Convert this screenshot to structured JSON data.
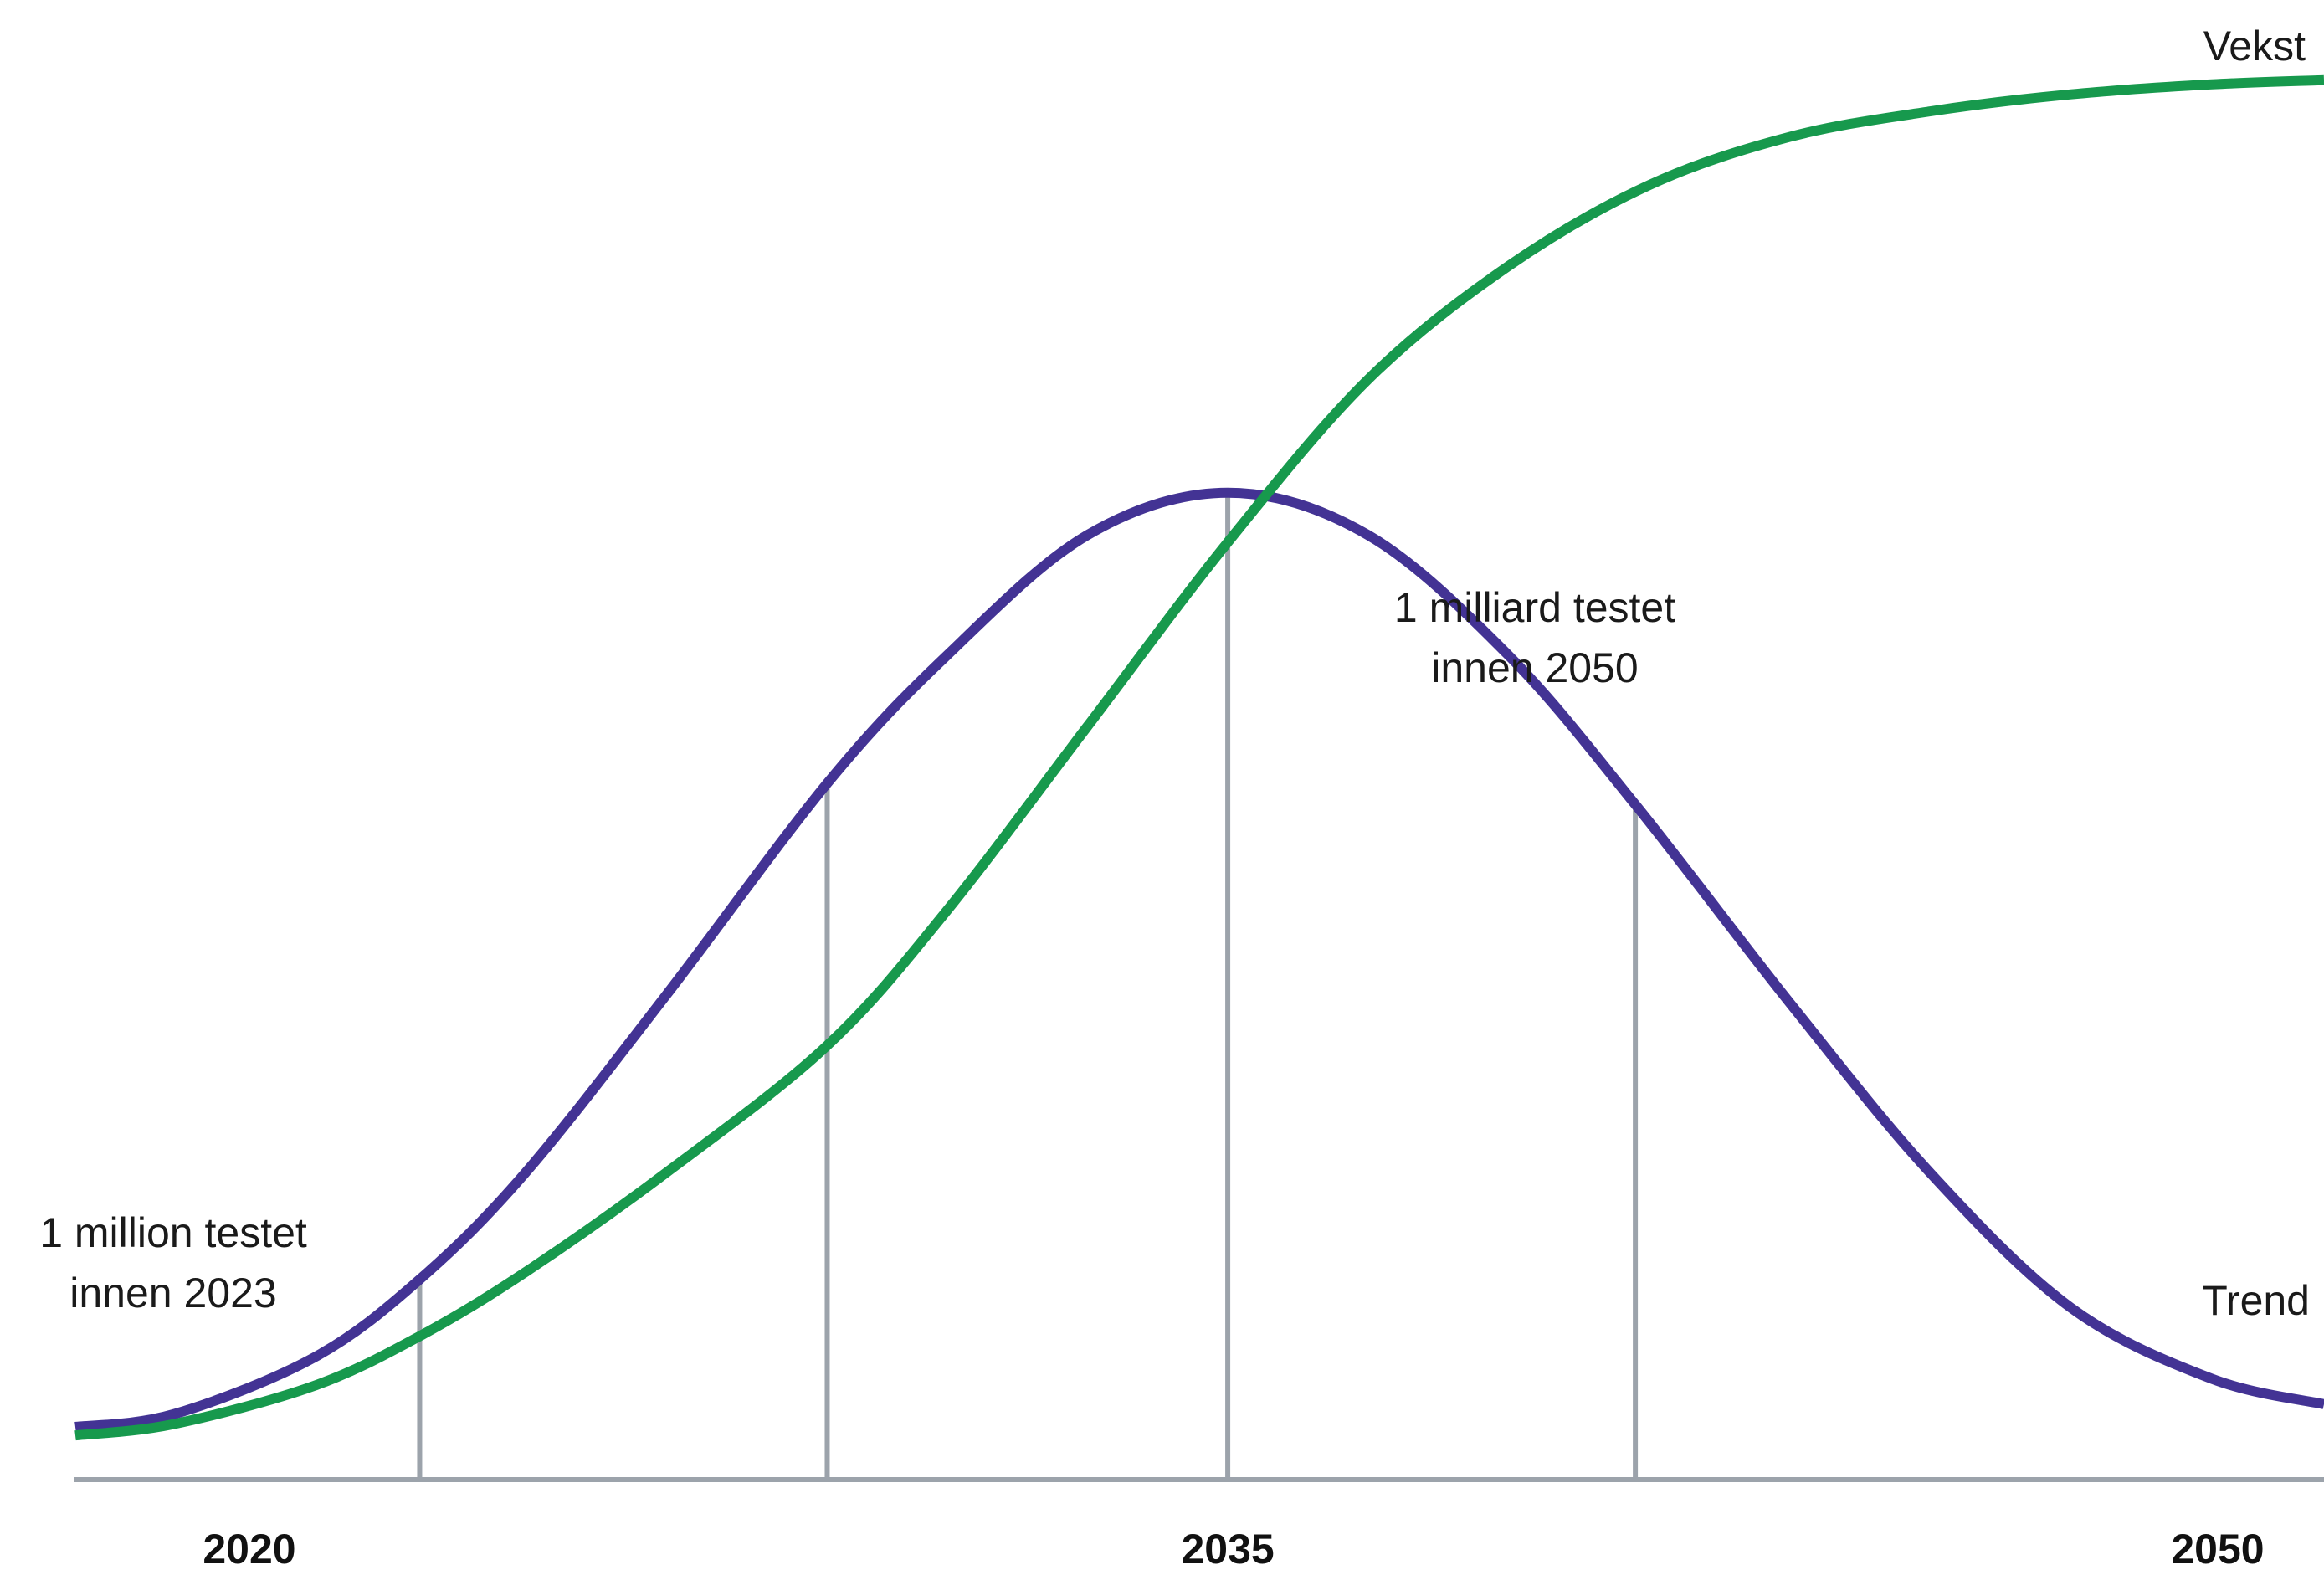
{
  "colors": {
    "trend": "#433394",
    "vekst": "#17994d",
    "grid": "#9ca3ab",
    "text": "#1a1a1a"
  },
  "chart_data": {
    "type": "line",
    "xlabel": "",
    "ylabel": "",
    "xlim": [
      2018.6,
      2050.6
    ],
    "ylim": [
      0,
      100
    ],
    "x_ticks": [
      "2020",
      "2035",
      "2050"
    ],
    "x_tick_values": [
      2020,
      2035,
      2050
    ],
    "gridlines_x": [
      2023.5,
      2029.3,
      2035,
      2040.8
    ],
    "series": [
      {
        "name": "Trend",
        "x": [
          2018.6,
          2020,
          2022,
          2023.5,
          2025,
          2027,
          2029.3,
          2031,
          2033,
          2035,
          2037,
          2039,
          2040.8,
          2043,
          2045,
          2047,
          2049,
          2050.6
        ],
        "y": [
          3.6,
          4.5,
          8.5,
          14,
          21.5,
          34,
          49,
          58,
          66.5,
          69.5,
          66.5,
          58,
          47.5,
          33.5,
          21.5,
          12,
          7,
          5.2
        ]
      },
      {
        "name": "Vekst",
        "x": [
          2018.6,
          2020,
          2022,
          2023.5,
          2025,
          2027,
          2029.3,
          2031,
          2033,
          2035,
          2037,
          2039,
          2041,
          2043,
          2045,
          2047,
          2049,
          2050.6
        ],
        "y": [
          3,
          3.8,
          6.5,
          10,
          14.5,
          21.5,
          30.5,
          40,
          53,
          66,
          77.5,
          85.5,
          91.2,
          94.6,
          96.4,
          97.6,
          98.3,
          98.6
        ]
      }
    ],
    "annotations": [
      {
        "line1": "1 million testet",
        "line2": "innen 2023"
      },
      {
        "line1": "1 milliard testet",
        "line2": "innen 2050"
      }
    ],
    "series_labels": {
      "vekst": "Vekst",
      "trend": "Trend"
    }
  }
}
